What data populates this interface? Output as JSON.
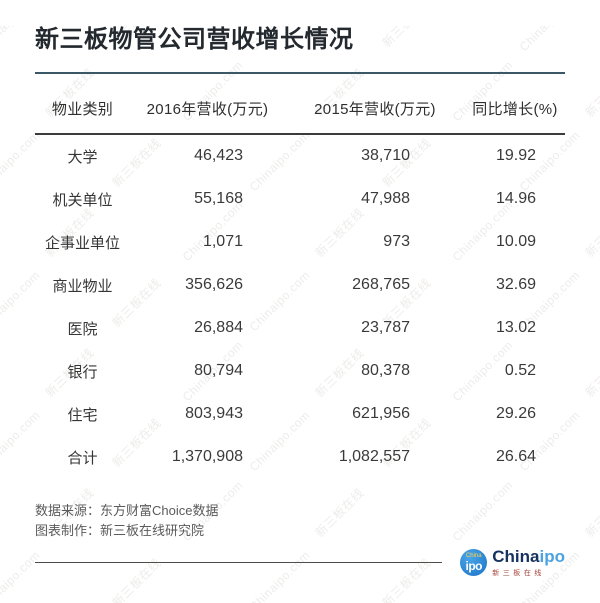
{
  "title": "新三板物管公司营收增长情况",
  "colors": {
    "title_rule": "#3a5866",
    "header_rule": "#3b3b3b",
    "footer_rule": "#4d4d4d",
    "logo_badge_blue": "#1b72c4",
    "logo_wordmark_navy": "#16335f",
    "logo_wordmark_blue": "#4aa3e0",
    "logo_subtext_red": "#a8423a"
  },
  "table": {
    "headers": [
      "物业类别",
      "2016年营收(万元)",
      "2015年营收(万元)",
      "同比增长(%)"
    ],
    "rows": [
      {
        "category": "大学",
        "y2016": "46,423",
        "y2015": "38,710",
        "growth": "19.92"
      },
      {
        "category": "机关单位",
        "y2016": "55,168",
        "y2015": "47,988",
        "growth": "14.96"
      },
      {
        "category": "企事业单位",
        "y2016": "1,071",
        "y2015": "973",
        "growth": "10.09"
      },
      {
        "category": "商业物业",
        "y2016": "356,626",
        "y2015": "268,765",
        "growth": "32.69"
      },
      {
        "category": "医院",
        "y2016": "26,884",
        "y2015": "23,787",
        "growth": "13.02"
      },
      {
        "category": "银行",
        "y2016": "80,794",
        "y2015": "80,378",
        "growth": "0.52"
      },
      {
        "category": "住宅",
        "y2016": "803,943",
        "y2015": "621,956",
        "growth": "29.26"
      },
      {
        "category": "合计",
        "y2016": "1,370,908",
        "y2015": "1,082,557",
        "growth": "26.64"
      }
    ]
  },
  "footer": {
    "source": "数据来源：东方财富Choice数据",
    "maker": "图表制作：新三板在线研究院"
  },
  "logo": {
    "badge_top": "China",
    "badge_main": "ipo",
    "wordmark_dark": "China",
    "wordmark_light": "ipo",
    "subtext": "新三板在线"
  },
  "watermark": {
    "texts": [
      "Chinaipo.com",
      "新三板在线"
    ]
  },
  "chart_data": {
    "type": "table",
    "title": "新三板物管公司营收增长情况",
    "columns": [
      "物业类别",
      "2016年营收(万元)",
      "2015年营收(万元)",
      "同比增长(%)"
    ],
    "rows": [
      [
        "大学",
        46423,
        38710,
        19.92
      ],
      [
        "机关单位",
        55168,
        47988,
        14.96
      ],
      [
        "企事业单位",
        1071,
        973,
        10.09
      ],
      [
        "商业物业",
        356626,
        268765,
        32.69
      ],
      [
        "医院",
        26884,
        23787,
        13.02
      ],
      [
        "银行",
        80794,
        80378,
        0.52
      ],
      [
        "住宅",
        803943,
        621956,
        29.26
      ],
      [
        "合计",
        1370908,
        1082557,
        26.64
      ]
    ],
    "source_note": "数据来源：东方财富Choice数据",
    "maker_note": "图表制作：新三板在线研究院"
  }
}
